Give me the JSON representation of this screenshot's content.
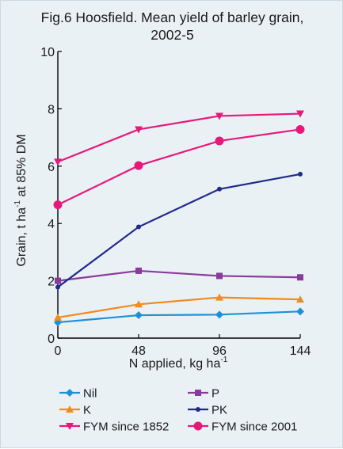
{
  "chart_data": {
    "type": "line",
    "title": "Fig.6  Hoosfield. Mean yield of barley grain,",
    "subtitle": "2002-5",
    "xlabel": "N applied, kg ha",
    "xlabel_sup": "-1",
    "ylabel": "Grain, t ha",
    "ylabel_sup": "-1",
    "ylabel_suffix": " at 85% DM",
    "x": [
      0,
      48,
      96,
      144
    ],
    "x_tick_labels": [
      "0",
      "48",
      "96",
      "144"
    ],
    "y_tick_labels": [
      "0",
      "2",
      "4",
      "6",
      "8",
      "10"
    ],
    "ylim": [
      0,
      10
    ],
    "grid": false,
    "legend_position": "bottom",
    "series": [
      {
        "name": "Nil",
        "color": "#1e90d6",
        "marker": "diamond",
        "values": [
          0.55,
          0.8,
          0.82,
          0.93
        ]
      },
      {
        "name": "P",
        "color": "#8a3a9c",
        "marker": "square",
        "values": [
          2.0,
          2.35,
          2.17,
          2.12
        ]
      },
      {
        "name": "K",
        "color": "#f28a1c",
        "marker": "triangle-up",
        "values": [
          0.72,
          1.18,
          1.42,
          1.35
        ]
      },
      {
        "name": "PK",
        "color": "#1f2a8c",
        "marker": "circle",
        "values": [
          1.78,
          3.88,
          5.2,
          5.72
        ]
      },
      {
        "name": "FYM since 1852",
        "color": "#e6187a",
        "marker": "triangle-down",
        "values": [
          6.15,
          7.28,
          7.75,
          7.83
        ]
      },
      {
        "name": "FYM since 2001",
        "color": "#e6187a",
        "marker": "big-circle",
        "values": [
          4.65,
          6.02,
          6.88,
          7.28
        ]
      }
    ]
  }
}
